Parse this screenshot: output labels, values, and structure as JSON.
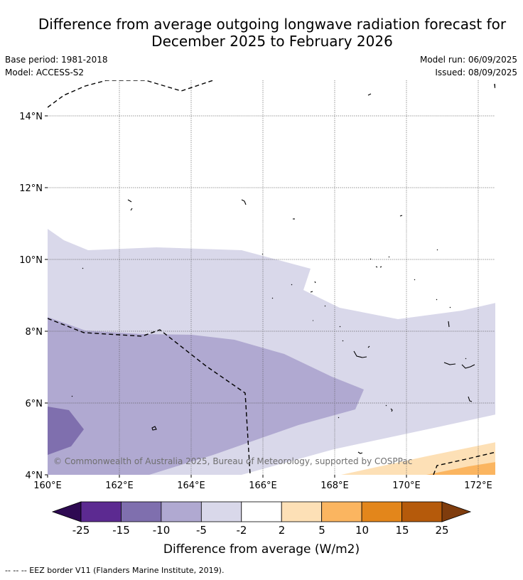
{
  "header": {
    "title_line1": "Difference from average outgoing longwave radiation forecast for",
    "title_line2": "December 2025 to February 2026",
    "base_period": "Base period: 1981-2018",
    "model": "Model: ACCESS-S2",
    "model_run": "Model run: 06/09/2025",
    "issued": "Issued: 08/09/2025"
  },
  "map": {
    "lon_ticks": [
      "160°E",
      "162°E",
      "164°E",
      "166°E",
      "168°E",
      "170°E",
      "172°E"
    ],
    "lat_ticks": [
      "14°N",
      "12°N",
      "10°N",
      "8°N",
      "6°N",
      "4°N"
    ],
    "extent": {
      "lon": [
        160,
        172.5
      ],
      "lat": [
        4,
        15
      ]
    },
    "grid": true,
    "copyright": "© Commonwealth of Australia 2025, Bureau of Meteorology, supported by COSPPac"
  },
  "colorbar": {
    "labels": [
      "-25",
      "-15",
      "-10",
      "-5",
      "-2",
      "2",
      "5",
      "10",
      "15",
      "25"
    ],
    "colors": [
      "#5c2a91",
      "#7f6fae",
      "#b0a9d1",
      "#d9d8ea",
      "#ffffff",
      "#fde0b6",
      "#fbb560",
      "#e3861b",
      "#b55a0b"
    ],
    "under_color": "#2e0a52",
    "over_color": "#7f3c0d",
    "title": "Difference from average (W/m2)"
  },
  "footer": {
    "legend_text": "--  --  -- EEZ border V11 (Flanders Marine Institute, 2019)."
  }
}
